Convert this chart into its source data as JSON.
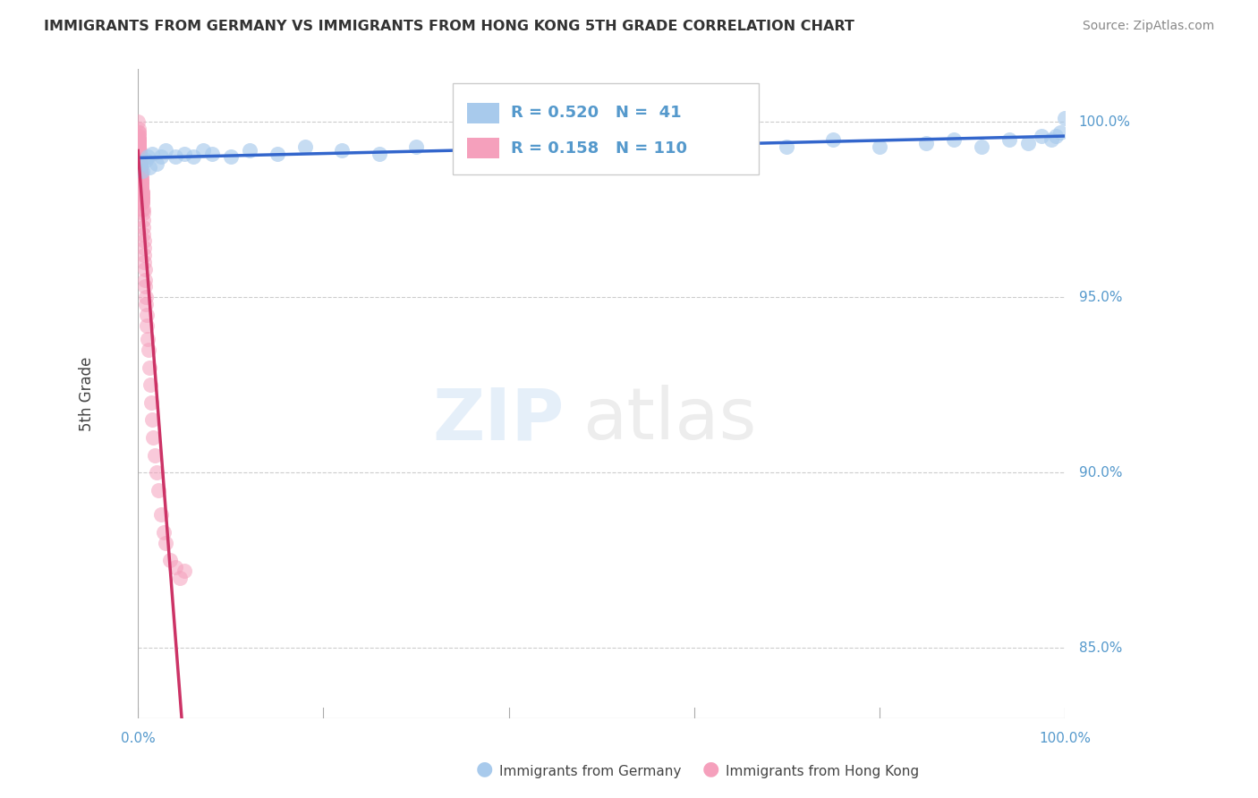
{
  "title": "IMMIGRANTS FROM GERMANY VS IMMIGRANTS FROM HONG KONG 5TH GRADE CORRELATION CHART",
  "source_text": "Source: ZipAtlas.com",
  "ylabel": "5th Grade",
  "yticks": [
    100.0,
    95.0,
    90.0,
    85.0
  ],
  "ytick_labels": [
    "100.0%",
    "95.0%",
    "90.0%",
    "85.0%"
  ],
  "xtick_labels_left": "0.0%",
  "xtick_labels_right": "100.0%",
  "xlim": [
    0.0,
    100.0
  ],
  "ylim": [
    83.0,
    101.5
  ],
  "blue_R": "0.520",
  "blue_N": "41",
  "pink_R": "0.158",
  "pink_N": "110",
  "legend_label_blue": "Immigrants from Germany",
  "legend_label_pink": "Immigrants from Hong Kong",
  "blue_color": "#a8caec",
  "pink_color": "#f5a0bc",
  "blue_line_color": "#3366cc",
  "pink_line_color": "#cc3366",
  "grid_color": "#cccccc",
  "axis_color": "#aaaaaa",
  "ylabel_color": "#444444",
  "ytick_color": "#5599cc",
  "xtick_color": "#5599cc",
  "title_color": "#333333",
  "source_color": "#888888",
  "watermark_color1": "#cce0f5",
  "watermark_color2": "#d8d8d8",
  "blue_scatter_x": [
    0.3,
    0.5,
    0.8,
    1.0,
    1.2,
    1.5,
    2.0,
    2.5,
    3.0,
    4.0,
    5.0,
    6.0,
    7.0,
    8.0,
    10.0,
    12.0,
    15.0,
    18.0,
    22.0,
    26.0,
    30.0,
    35.0,
    40.0,
    45.0,
    50.0,
    55.0,
    60.0,
    65.0,
    70.0,
    75.0,
    80.0,
    85.0,
    88.0,
    91.0,
    94.0,
    96.0,
    97.5,
    98.5,
    99.0,
    99.5,
    100.0
  ],
  "blue_scatter_y": [
    98.8,
    98.6,
    98.9,
    99.0,
    98.7,
    99.1,
    98.8,
    99.0,
    99.2,
    99.0,
    99.1,
    99.0,
    99.2,
    99.1,
    99.0,
    99.2,
    99.1,
    99.3,
    99.2,
    99.1,
    99.3,
    99.2,
    99.4,
    99.2,
    99.3,
    99.4,
    99.2,
    99.4,
    99.3,
    99.5,
    99.3,
    99.4,
    99.5,
    99.3,
    99.5,
    99.4,
    99.6,
    99.5,
    99.6,
    99.7,
    100.1
  ],
  "pink_scatter_x": [
    0.02,
    0.03,
    0.04,
    0.05,
    0.06,
    0.07,
    0.08,
    0.09,
    0.1,
    0.1,
    0.12,
    0.13,
    0.14,
    0.15,
    0.16,
    0.17,
    0.18,
    0.19,
    0.2,
    0.2,
    0.22,
    0.24,
    0.25,
    0.27,
    0.28,
    0.3,
    0.32,
    0.34,
    0.35,
    0.37,
    0.38,
    0.4,
    0.42,
    0.44,
    0.45,
    0.47,
    0.5,
    0.52,
    0.55,
    0.58,
    0.6,
    0.63,
    0.65,
    0.68,
    0.7,
    0.73,
    0.75,
    0.78,
    0.8,
    0.85,
    0.9,
    0.95,
    1.0,
    1.1,
    1.2,
    1.3,
    1.4,
    1.5,
    1.6,
    1.8,
    2.0,
    2.2,
    2.5,
    2.8,
    3.0,
    3.5,
    4.0,
    4.5,
    5.0,
    0.05,
    0.08,
    0.1,
    0.15,
    0.2,
    0.25,
    0.3,
    0.35,
    0.4,
    0.45,
    0.5,
    0.06,
    0.09,
    0.12,
    0.18,
    0.22,
    0.28,
    0.33,
    0.38,
    0.43,
    0.48,
    0.04,
    0.07,
    0.11,
    0.16,
    0.21,
    0.26,
    0.31,
    0.36,
    0.41,
    0.46,
    0.05,
    0.08,
    0.12,
    0.17,
    0.23,
    0.29,
    0.35,
    0.42,
    0.5,
    0.6
  ],
  "pink_scatter_y": [
    100.0,
    99.8,
    99.7,
    99.6,
    99.5,
    99.4,
    99.5,
    99.3,
    99.4,
    99.2,
    99.3,
    99.1,
    99.2,
    99.0,
    99.1,
    98.9,
    99.0,
    98.8,
    98.9,
    98.7,
    98.8,
    98.6,
    98.7,
    98.5,
    98.6,
    98.4,
    98.5,
    98.3,
    98.4,
    98.2,
    98.3,
    98.1,
    98.0,
    97.9,
    97.8,
    97.7,
    97.5,
    97.4,
    97.2,
    97.0,
    96.8,
    96.6,
    96.4,
    96.2,
    96.0,
    95.8,
    95.5,
    95.3,
    95.0,
    94.8,
    94.5,
    94.2,
    93.8,
    93.5,
    93.0,
    92.5,
    92.0,
    91.5,
    91.0,
    90.5,
    90.0,
    89.5,
    88.8,
    88.3,
    88.0,
    87.5,
    87.3,
    87.0,
    87.2,
    99.7,
    99.5,
    99.3,
    99.1,
    98.9,
    98.7,
    98.5,
    98.3,
    98.1,
    97.9,
    97.7,
    99.6,
    99.4,
    99.2,
    99.0,
    98.8,
    98.6,
    98.4,
    98.2,
    98.0,
    97.8,
    99.5,
    99.3,
    99.1,
    98.9,
    98.7,
    98.5,
    98.3,
    98.1,
    97.9,
    97.7,
    99.4,
    99.2,
    99.0,
    98.8,
    98.6,
    98.4,
    98.2,
    98.0,
    97.8,
    97.5
  ]
}
